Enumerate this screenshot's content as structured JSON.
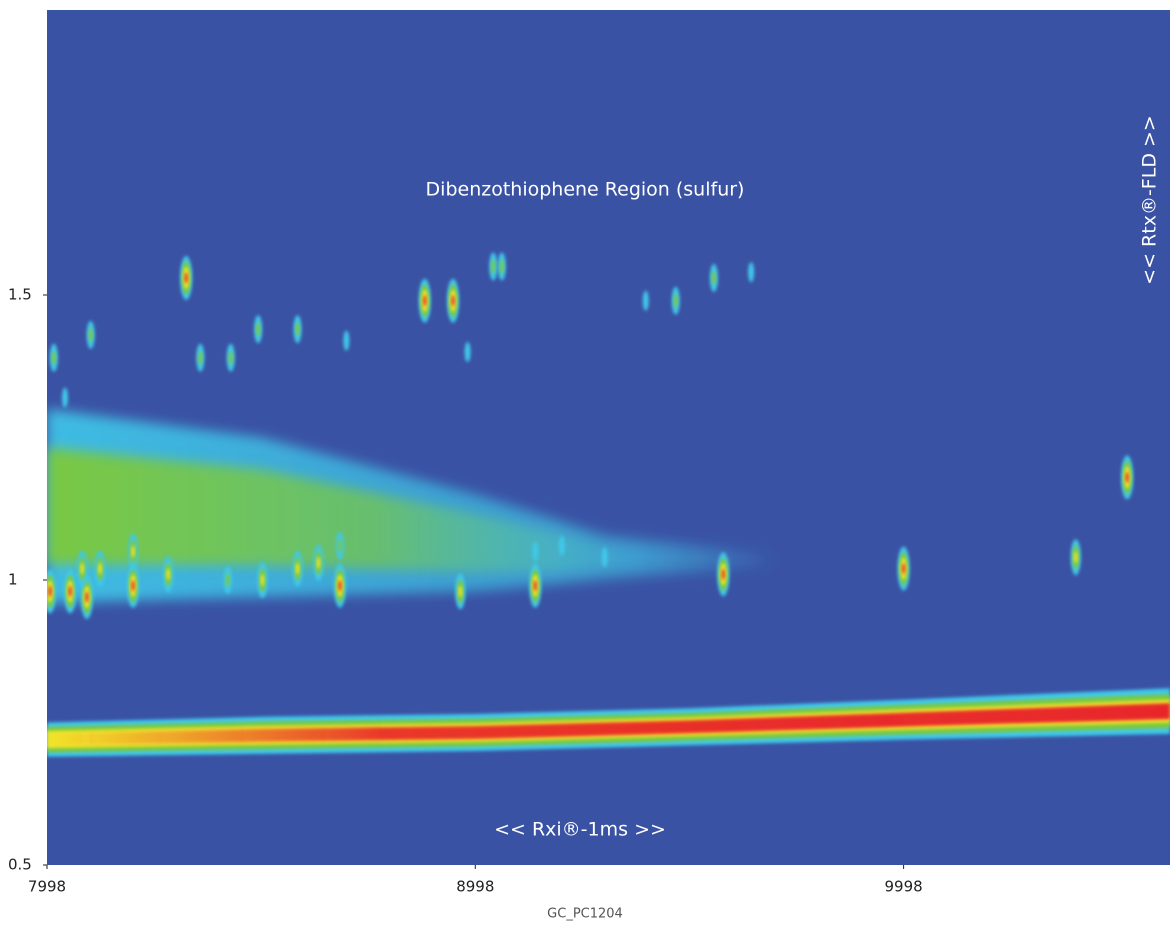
{
  "chart_data": {
    "type": "contour",
    "title": "Dibenzothiophene Region (sulfur)",
    "x_annotation": "<< Rxi®-1ms >>",
    "y_annotation": "<< Rtx®-FLD >>",
    "x_label": "GC_PC1204",
    "xlim": [
      7998,
      10620
    ],
    "ylim": [
      0.5,
      2.0
    ],
    "xticks": [
      7998,
      8998,
      9998
    ],
    "yticks": [
      0.5,
      1,
      1.5
    ],
    "zlim": [
      0,
      4
    ],
    "colormap": [
      "#3a52a4",
      "#3fc8ea",
      "#79c843",
      "#f2e62a",
      "#e8252a"
    ],
    "band": {
      "x": [
        7998,
        8500,
        9000,
        9500,
        10000,
        10620
      ],
      "y_low": [
        0.69,
        0.695,
        0.7,
        0.71,
        0.72,
        0.73
      ],
      "y_high": [
        0.75,
        0.76,
        0.765,
        0.775,
        0.79,
        0.81
      ]
    },
    "cloud": {
      "x": [
        7998,
        8500,
        9000,
        9300,
        9700
      ],
      "y_low": [
        0.96,
        0.97,
        0.98,
        1.0,
        1.02
      ],
      "y_high": [
        1.3,
        1.25,
        1.15,
        1.08,
        1.05
      ]
    },
    "peaks": {
      "x": [
        8005,
        8052,
        8091,
        8080,
        8122,
        8199,
        8199,
        8281,
        8323,
        8420,
        8501,
        8583,
        8632,
        8682,
        8682,
        8880,
        8946,
        8963,
        9040,
        9060,
        9138,
        9577,
        9998,
        10400,
        10520,
        8014,
        8100,
        8040,
        8491,
        8583,
        8697,
        8427,
        8356,
        8980,
        9396,
        9466,
        9555,
        9642,
        9138,
        9300,
        9200
      ],
      "y": [
        0.98,
        0.98,
        0.97,
        1.02,
        1.02,
        0.99,
        1.05,
        1.01,
        1.53,
        1.0,
        1.0,
        1.02,
        1.03,
        0.99,
        1.06,
        1.49,
        1.49,
        0.98,
        1.55,
        1.55,
        0.99,
        1.01,
        1.02,
        1.04,
        1.18,
        1.39,
        1.43,
        1.32,
        1.44,
        1.44,
        1.42,
        1.39,
        1.39,
        1.4,
        1.49,
        1.49,
        1.53,
        1.54,
        1.05,
        1.04,
        1.06
      ],
      "intensity": [
        4,
        4,
        4,
        3,
        3,
        4,
        3,
        3,
        4,
        2,
        3,
        3,
        3,
        4,
        2,
        4,
        4,
        3,
        2,
        2,
        4,
        4,
        4,
        3,
        4,
        2,
        2,
        1,
        2,
        2,
        1,
        2,
        2,
        1,
        1,
        2,
        2,
        1,
        1,
        1,
        1
      ]
    }
  }
}
